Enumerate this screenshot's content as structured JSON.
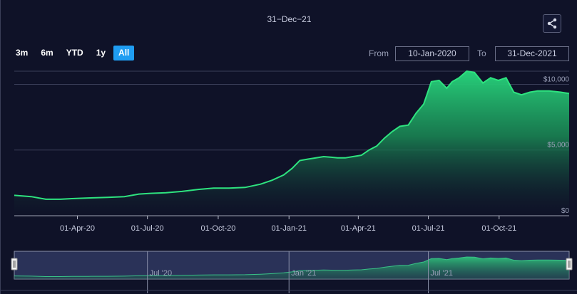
{
  "header": {
    "title": "31−Dec−21",
    "share_icon": "share-icon"
  },
  "range_selector": {
    "buttons": [
      {
        "label": "3m",
        "active": false
      },
      {
        "label": "6m",
        "active": false
      },
      {
        "label": "YTD",
        "active": false
      },
      {
        "label": "1y",
        "active": false
      },
      {
        "label": "All",
        "active": true
      }
    ],
    "from_label": "From",
    "from_value": "10-Jan-2020",
    "to_label": "To",
    "to_value": "31-Dec-2021"
  },
  "colors": {
    "background": "#0f1228",
    "line": "#2ee37f",
    "active_button": "#1f9df2"
  },
  "chart_data": {
    "type": "area",
    "title": "31−Dec−21",
    "x_ticks": [
      "01-Apr-20",
      "01-Jul-20",
      "01-Oct-20",
      "01-Jan-21",
      "01-Apr-21",
      "01-Jul-21",
      "01-Oct-21"
    ],
    "y_ticks": [
      "$0",
      "$5,000",
      "$10,000"
    ],
    "ylim": [
      0,
      11000
    ],
    "xlim": [
      "2020-01-10",
      "2021-12-31"
    ],
    "grid": true,
    "navigator_ticks": [
      "Jul '20",
      "Jan '21",
      "Jul '21"
    ],
    "series": [
      {
        "x": [
          "2020-01-10",
          "2020-02-01",
          "2020-02-20",
          "2020-03-10",
          "2020-03-25",
          "2020-04-15",
          "2020-05-10",
          "2020-06-01",
          "2020-06-20",
          "2020-07-05",
          "2020-07-25",
          "2020-08-15",
          "2020-09-05",
          "2020-09-25",
          "2020-10-15",
          "2020-11-05",
          "2020-11-25",
          "2020-12-10",
          "2020-12-25",
          "2021-01-05",
          "2021-01-15",
          "2021-01-25",
          "2021-02-05",
          "2021-02-15",
          "2021-02-25",
          "2021-03-05",
          "2021-03-15",
          "2021-03-25",
          "2021-04-05",
          "2021-04-15",
          "2021-04-25",
          "2021-05-05",
          "2021-05-15",
          "2021-05-25",
          "2021-06-05",
          "2021-06-15",
          "2021-06-25",
          "2021-07-05",
          "2021-07-15",
          "2021-07-25",
          "2021-08-01",
          "2021-08-10",
          "2021-08-20",
          "2021-08-30",
          "2021-09-10",
          "2021-09-20",
          "2021-09-30",
          "2021-10-10",
          "2021-10-20",
          "2021-10-30",
          "2021-11-10",
          "2021-11-20",
          "2021-12-05",
          "2021-12-20",
          "2021-12-31"
        ],
        "y": [
          1550,
          1450,
          1250,
          1250,
          1300,
          1350,
          1400,
          1450,
          1650,
          1700,
          1750,
          1850,
          2000,
          2100,
          2100,
          2150,
          2400,
          2700,
          3100,
          3600,
          4200,
          4300,
          4400,
          4500,
          4450,
          4400,
          4400,
          4500,
          4600,
          5000,
          5300,
          5900,
          6400,
          6800,
          6900,
          7800,
          8500,
          10200,
          10300,
          9700,
          10200,
          10500,
          11000,
          10900,
          10100,
          10500,
          10300,
          10500,
          9400,
          9200,
          9400,
          9500,
          9500,
          9400,
          9300
        ]
      }
    ]
  }
}
